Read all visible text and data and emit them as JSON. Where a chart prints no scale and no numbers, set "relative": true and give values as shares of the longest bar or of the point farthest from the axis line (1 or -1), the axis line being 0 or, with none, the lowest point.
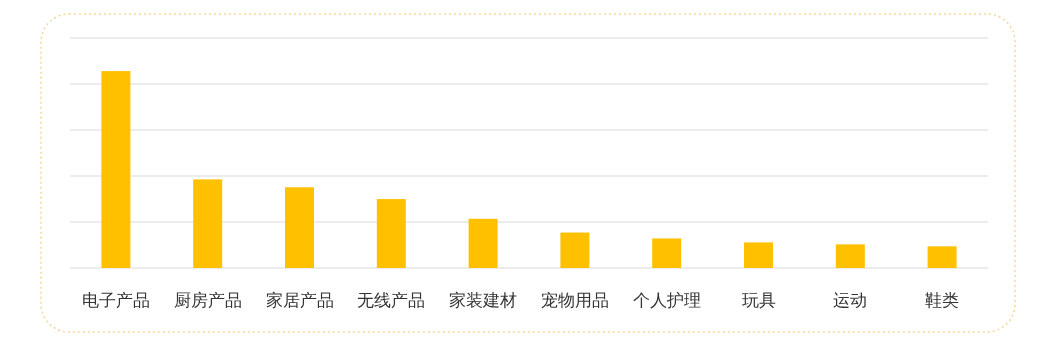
{
  "chart_data": {
    "type": "bar",
    "relative": true,
    "grid": "y",
    "color": "#ffc000",
    "categories": [
      "电子产品",
      "厨房产品",
      "家居产品",
      "无线产品",
      "家装建材",
      "宠物用品",
      "个人护理",
      "玩具",
      "运动",
      "鞋类"
    ],
    "values": [
      1,
      0.45,
      0.41,
      0.35,
      0.25,
      0.18,
      0.15,
      0.13,
      0.12,
      0.11
    ]
  }
}
